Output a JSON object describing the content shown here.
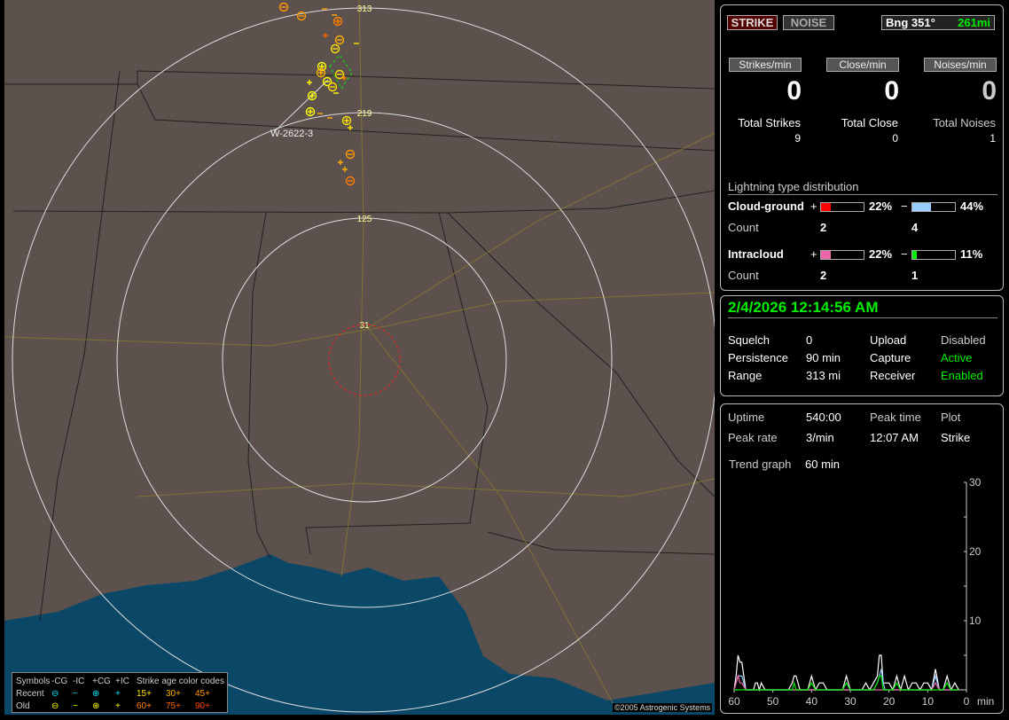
{
  "map": {
    "ring_labels": [
      "31",
      "125",
      "219",
      "313"
    ],
    "warning_label": "W-2622-3",
    "copyright": "©2005 Astrogenic Systems",
    "legend": {
      "header": [
        "Symbols",
        "-CG",
        "-IC",
        "+CG",
        "+IC",
        "Strike age color codes"
      ],
      "recent_label": "Recent",
      "old_label": "Old",
      "recent_symbols": [
        "⊖",
        "−",
        "⊕",
        "+"
      ],
      "old_symbols": [
        "⊖",
        "−",
        "⊕",
        "+"
      ],
      "recent_ages": [
        "15+",
        "30+",
        "45+"
      ],
      "old_ages": [
        "60+",
        "75+",
        "90+"
      ],
      "colors": {
        "recent": "#00e5ff",
        "old": "#ffff00",
        "15": "#ffe000",
        "30": "#ffb000",
        "45": "#ff9a00",
        "60": "#ff8000",
        "75": "#ff6000",
        "90": "#ff4000"
      }
    }
  },
  "status": {
    "strike_button": "STRIKE",
    "noise_button": "NOISE",
    "bearing": "Bng 351°",
    "distance": "261mi",
    "strikes_per_min_label": "Strikes/min",
    "close_per_min_label": "Close/min",
    "noises_per_min_label": "Noises/min",
    "strikes_per_min": "0",
    "close_per_min": "0",
    "noises_per_min": "0",
    "total_strikes_label": "Total Strikes",
    "total_close_label": "Total Close",
    "total_noises_label": "Total Noises",
    "total_strikes": "9",
    "total_close": "0",
    "total_noises": "1"
  },
  "distribution": {
    "title": "Lightning type distribution",
    "cg_label": "Cloud-ground",
    "ic_label": "Intracloud",
    "count_label": "Count",
    "plus": "+",
    "minus": "−",
    "cg_pos_pct": "22%",
    "cg_neg_pct": "44%",
    "ic_pos_pct": "22%",
    "ic_neg_pct": "11%",
    "cg_pos_fill": 22,
    "cg_neg_fill": 44,
    "ic_pos_fill": 22,
    "ic_neg_fill": 11,
    "cg_pos_count": "2",
    "cg_neg_count": "4",
    "ic_pos_count": "2",
    "ic_neg_count": "1",
    "colors": {
      "cg_pos": "#ff0000",
      "cg_neg": "#99ccff",
      "ic_pos": "#ee66aa",
      "ic_neg": "#00ee00"
    }
  },
  "info": {
    "datetime": "2/4/2026 12:14:56 AM",
    "squelch_label": "Squelch",
    "squelch": "0",
    "persistence_label": "Persistence",
    "persistence": "90 min",
    "range_label": "Range",
    "range": "313 mi",
    "upload_label": "Upload",
    "upload": "Disabled",
    "capture_label": "Capture",
    "capture": "Active",
    "receiver_label": "Receiver",
    "receiver": "Enabled"
  },
  "stats": {
    "uptime_label": "Uptime",
    "uptime": "540:00",
    "peak_time_label": "Peak time",
    "peak_time": "12:07 AM",
    "plot_label": "Plot",
    "plot": "Strike",
    "peak_rate_label": "Peak rate",
    "peak_rate": "3/min",
    "trend_label": "Trend graph",
    "trend": "60 min"
  },
  "chart_data": {
    "type": "line",
    "xlabel": "min",
    "x_ticks": [
      "60",
      "50",
      "40",
      "30",
      "20",
      "10",
      "0"
    ],
    "y_ticks": [
      "10",
      "20",
      "30"
    ],
    "xlim": [
      60,
      0
    ],
    "ylim": [
      0,
      30
    ],
    "x": [
      60,
      59.5,
      59,
      58.5,
      58,
      57,
      55,
      54.5,
      54,
      53.5,
      53,
      52,
      46,
      45,
      44.5,
      44,
      43,
      41,
      40,
      39,
      38,
      37,
      36,
      32,
      31,
      30,
      27,
      26,
      25,
      24,
      23,
      22.5,
      22,
      21.5,
      21,
      20,
      19,
      18,
      17,
      16,
      15,
      14,
      13,
      12,
      11,
      10,
      9,
      8,
      7,
      6,
      5,
      4,
      3,
      2
    ],
    "series": [
      {
        "color": "#ffffff",
        "values": [
          0,
          2,
          5,
          4,
          4,
          0,
          0,
          1,
          1,
          0,
          1,
          0,
          0,
          1,
          2,
          2,
          0,
          0,
          2,
          0,
          1,
          1,
          0,
          0,
          2,
          0,
          0,
          1,
          0,
          1,
          2,
          5,
          5,
          1,
          1,
          1,
          0,
          2,
          0,
          2,
          0,
          1,
          1,
          0,
          1,
          1,
          0,
          3,
          0,
          0,
          2,
          0,
          1,
          0
        ]
      },
      {
        "color": "#99ccff",
        "values": [
          0,
          1,
          2,
          2,
          2,
          0,
          0,
          0,
          0,
          0,
          0,
          0,
          0,
          0,
          0,
          0,
          0,
          0,
          0,
          0,
          0,
          0,
          0,
          0,
          0,
          0,
          0,
          0,
          0,
          0,
          1,
          2,
          3,
          1,
          0,
          0,
          0,
          0,
          0,
          0,
          0,
          0,
          0,
          0,
          0,
          0,
          0,
          2,
          0,
          0,
          0,
          0,
          0,
          0
        ]
      },
      {
        "color": "#ee66aa",
        "values": [
          0,
          1,
          2,
          1,
          1,
          0,
          0,
          0,
          0,
          0,
          0,
          0,
          0,
          0,
          0,
          0,
          0,
          0,
          0,
          0,
          0,
          0,
          0,
          0,
          0,
          0,
          0,
          0,
          0,
          0,
          0,
          0,
          0,
          0,
          0,
          0,
          0,
          0,
          0,
          0,
          0,
          0,
          0,
          0,
          0,
          0,
          0,
          1,
          0,
          0,
          0,
          0,
          0,
          0
        ]
      },
      {
        "color": "#00ee00",
        "values": [
          0,
          0,
          0,
          0,
          0,
          0,
          0,
          0,
          0,
          0,
          0,
          0,
          0,
          0,
          1,
          0,
          0,
          0,
          1,
          0,
          0,
          0,
          0,
          0,
          1,
          0,
          0,
          0,
          0,
          0,
          1,
          2,
          2,
          0,
          0,
          0,
          0,
          1,
          0,
          0,
          0,
          0,
          0,
          0,
          0,
          0,
          0,
          0,
          0,
          0,
          1,
          0,
          0,
          0
        ]
      }
    ]
  }
}
